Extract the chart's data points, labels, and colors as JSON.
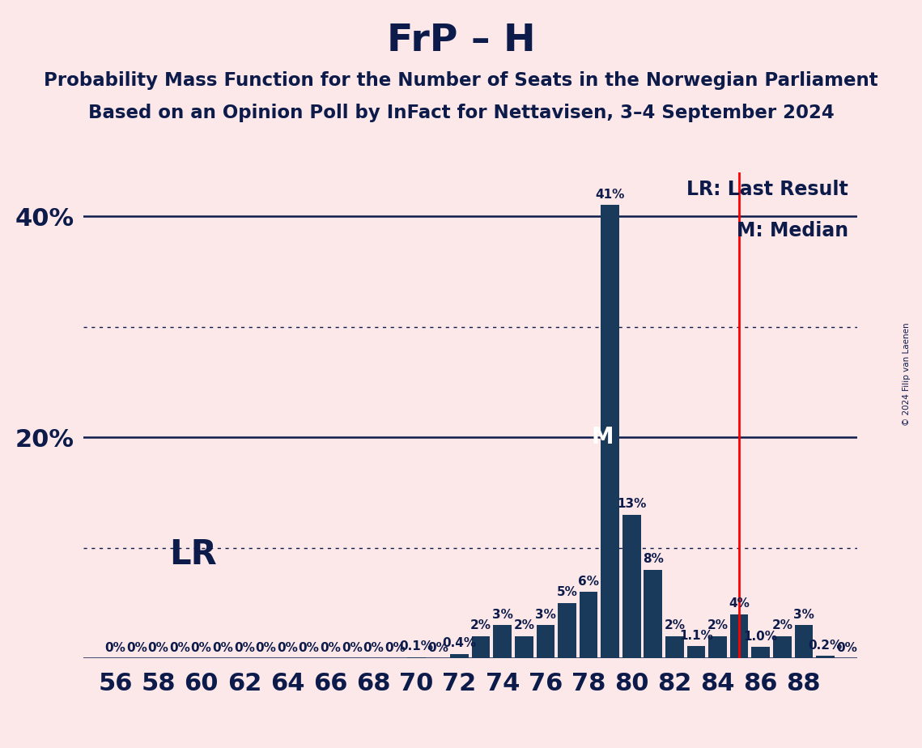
{
  "title": "FrP – H",
  "subtitle1": "Probability Mass Function for the Number of Seats in the Norwegian Parliament",
  "subtitle2": "Based on an Opinion Poll by InFact for Nettavisen, 3–4 September 2024",
  "copyright": "© 2024 Filip van Laenen",
  "background_color": "#fce8e8",
  "bar_color": "#1a3a5c",
  "title_color": "#0d1b4b",
  "seats": [
    56,
    57,
    58,
    59,
    60,
    61,
    62,
    63,
    64,
    65,
    66,
    67,
    68,
    69,
    70,
    71,
    72,
    73,
    74,
    75,
    76,
    77,
    78,
    79,
    80,
    81,
    82,
    83,
    84,
    85,
    86,
    87,
    88,
    89,
    90
  ],
  "probs": [
    0.0,
    0.0,
    0.0,
    0.0,
    0.0,
    0.0,
    0.0,
    0.0,
    0.0,
    0.0,
    0.0,
    0.0,
    0.0,
    0.0,
    0.1,
    0.0,
    0.4,
    2.0,
    3.0,
    2.0,
    3.0,
    5.0,
    6.0,
    41.0,
    13.0,
    8.0,
    2.0,
    1.1,
    2.0,
    4.0,
    1.0,
    2.0,
    3.0,
    0.2,
    0.0
  ],
  "bar_labels": {
    "70": "0.1%",
    "72": "0.4%",
    "73": "2%",
    "74": "3%",
    "75": "2%",
    "76": "3%",
    "77": "5%",
    "78": "6%",
    "79": "41%",
    "80": "13%",
    "81": "8%",
    "82": "2%",
    "83": "1.1%",
    "84": "2%",
    "85": "4%",
    "86": "1.0%",
    "87": "2%",
    "88": "3%",
    "89": "0.2%",
    "90": "0%"
  },
  "last_result": 85,
  "median": 79,
  "lr_label": "LR: Last Result",
  "median_label": "M: Median",
  "xlim": [
    54.5,
    90.5
  ],
  "ylim": [
    0,
    44
  ],
  "xticks": [
    56,
    58,
    60,
    62,
    64,
    66,
    68,
    70,
    72,
    74,
    76,
    78,
    80,
    82,
    84,
    86,
    88
  ]
}
